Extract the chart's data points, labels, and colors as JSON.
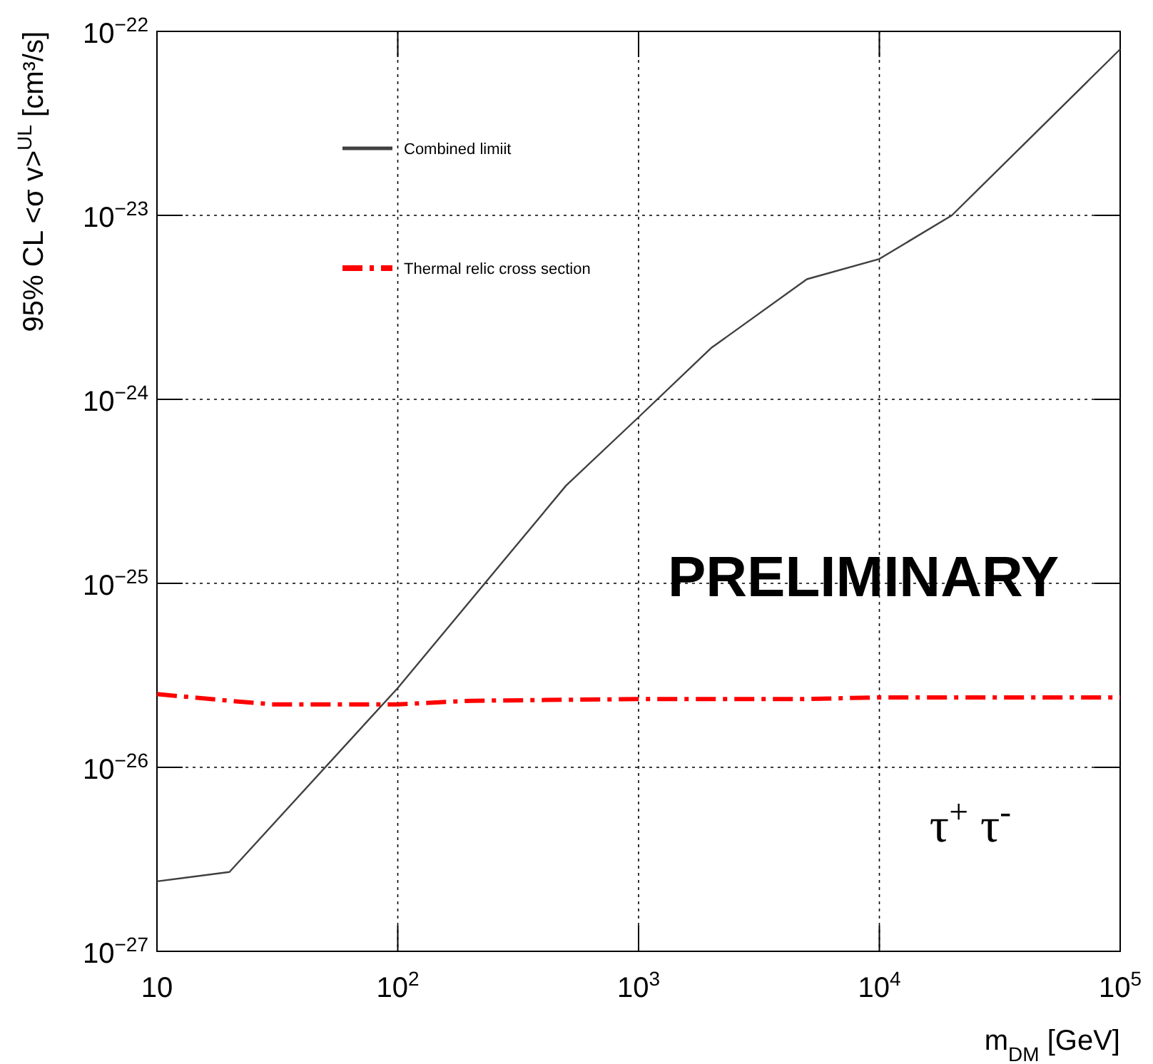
{
  "chart_data": {
    "type": "line",
    "xlabel": "m$_{DM}$ [GeV]",
    "ylabel": "95% CL <σ v>$^{UL}$ [cm³/s]",
    "log": "xy",
    "grid": true,
    "legend": "top left",
    "xlim": [
      10,
      100000
    ],
    "xticks": [
      {
        "value": 10,
        "label": "10"
      },
      {
        "value": 100,
        "label": "10$^{2}$"
      },
      {
        "value": 1000,
        "label": "10$^{3}$"
      },
      {
        "value": 10000,
        "label": "10$^{4}$"
      },
      {
        "value": 100000,
        "label": "10$^{5}$"
      }
    ],
    "ylim": [
      1e-27,
      1e-22
    ],
    "yticks": [
      {
        "value": 1e-27,
        "label": "10$^{−27}$"
      },
      {
        "value": 1e-26,
        "label": "10$^{−26}$"
      },
      {
        "value": 1e-25,
        "label": "10$^{−25}$"
      },
      {
        "value": 1e-24,
        "label": "10$^{−24}$"
      },
      {
        "value": 1e-23,
        "label": "10$^{−23}$"
      },
      {
        "value": 1e-22,
        "label": "10$^{−22}$"
      }
    ],
    "series": [
      {
        "name": "Combined limiit",
        "color": "#404040",
        "line_style": "solid",
        "x": [
          10,
          20,
          100,
          500,
          1000,
          2000,
          5000,
          10000,
          20000,
          100000
        ],
        "values": [
          2.4e-27,
          2.7e-27,
          2.7e-26,
          3.4e-25,
          8e-25,
          1.9e-24,
          4.5e-24,
          5.8e-24,
          1e-23,
          8e-23
        ]
      },
      {
        "name": "Thermal relic cross section",
        "color": "#ff0000",
        "line_style": "dashed",
        "x": [
          10,
          20,
          30,
          100,
          200,
          1000,
          5000,
          10000,
          100000
        ],
        "values": [
          2.5e-26,
          2.3e-26,
          2.2e-26,
          2.2e-26,
          2.3e-26,
          2.35e-26,
          2.35e-26,
          2.4e-26,
          2.4e-26
        ]
      }
    ],
    "annotations": [
      "PRELIMINARY",
      "τ$^{+}$ τ$^{-}$"
    ]
  }
}
